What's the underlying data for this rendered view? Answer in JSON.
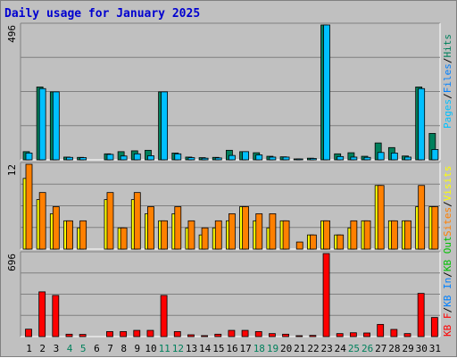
{
  "title": "Daily usage for January 2025",
  "colors": {
    "hits": "#00805c",
    "files": "#00c0ff",
    "sites": "#ff8000",
    "visits": "#ffff00",
    "kbin": "#0080ff",
    "kbout": "#00c000",
    "kbf": "#ff0000",
    "weekday_label": "#000000",
    "weekend_label": "#00805c",
    "separator": "#000000"
  },
  "chart_data": [
    {
      "type": "bar",
      "title": "Hits / Files",
      "ytick_max": "496",
      "ylim": [
        0,
        496
      ],
      "categories": [
        "1",
        "2",
        "3",
        "4",
        "5",
        "6",
        "7",
        "8",
        "9",
        "10",
        "11",
        "12",
        "13",
        "14",
        "15",
        "16",
        "17",
        "18",
        "19",
        "20",
        "21",
        "22",
        "23",
        "24",
        "25",
        "26",
        "27",
        "28",
        "29",
        "30",
        "31"
      ],
      "weekend_days": [
        "4",
        "5",
        "11",
        "12",
        "18",
        "19",
        "25",
        "26"
      ],
      "legend": [
        "Pages",
        "Files",
        "Hits"
      ],
      "series": [
        {
          "name": "Hits",
          "color_key": "hits",
          "values": [
            30,
            268,
            250,
            10,
            9,
            0,
            22,
            30,
            33,
            35,
            250,
            25,
            10,
            8,
            9,
            35,
            30,
            26,
            13,
            11,
            3,
            6,
            496,
            22,
            26,
            13,
            62,
            45,
            14,
            268,
            97
          ]
        },
        {
          "name": "Files",
          "color_key": "files",
          "values": [
            25,
            262,
            250,
            9,
            8,
            0,
            20,
            14,
            22,
            15,
            250,
            22,
            8,
            6,
            7,
            16,
            30,
            18,
            10,
            10,
            2,
            5,
            496,
            12,
            10,
            9,
            27,
            25,
            10,
            262,
            38
          ]
        }
      ]
    },
    {
      "type": "bar",
      "title": "Visits / Sites",
      "ytick_max": "12",
      "ylim": [
        0,
        12
      ],
      "categories": [
        "1",
        "2",
        "3",
        "4",
        "5",
        "6",
        "7",
        "8",
        "9",
        "10",
        "11",
        "12",
        "13",
        "14",
        "15",
        "16",
        "17",
        "18",
        "19",
        "20",
        "21",
        "22",
        "23",
        "24",
        "25",
        "26",
        "27",
        "28",
        "29",
        "30",
        "31"
      ],
      "legend": [
        "Sites",
        "Visits"
      ],
      "series": [
        {
          "name": "Visits",
          "color_key": "visits",
          "values": [
            10,
            7,
            5,
            4,
            3,
            0,
            7,
            3,
            7,
            5,
            4,
            5,
            3,
            2,
            3,
            4,
            6,
            4,
            3,
            4,
            0,
            2,
            4,
            2,
            3,
            4,
            9,
            4,
            4,
            6,
            6
          ]
        },
        {
          "name": "Sites",
          "color_key": "sites",
          "values": [
            12,
            8,
            6,
            4,
            4,
            0,
            8,
            3,
            8,
            6,
            4,
            6,
            4,
            3,
            4,
            5,
            6,
            5,
            5,
            4,
            1,
            2,
            4,
            2,
            4,
            4,
            9,
            4,
            4,
            9,
            6
          ]
        }
      ]
    },
    {
      "type": "bar",
      "title": "KB F / KB In / KB Out",
      "ytick_max": "696",
      "ylim": [
        0,
        696
      ],
      "categories": [
        "1",
        "2",
        "3",
        "4",
        "5",
        "6",
        "7",
        "8",
        "9",
        "10",
        "11",
        "12",
        "13",
        "14",
        "15",
        "16",
        "17",
        "18",
        "19",
        "20",
        "21",
        "22",
        "23",
        "24",
        "25",
        "26",
        "27",
        "28",
        "29",
        "30",
        "31"
      ],
      "legend": [
        "KB F",
        "KB In",
        "KB Out"
      ],
      "series": [
        {
          "name": "KB F",
          "color_key": "kbf",
          "values": [
            62,
            375,
            345,
            20,
            18,
            0,
            42,
            42,
            52,
            52,
            345,
            42,
            15,
            8,
            20,
            52,
            52,
            42,
            25,
            20,
            5,
            10,
            696,
            25,
            32,
            30,
            102,
            60,
            25,
            362,
            160
          ]
        }
      ]
    }
  ]
}
